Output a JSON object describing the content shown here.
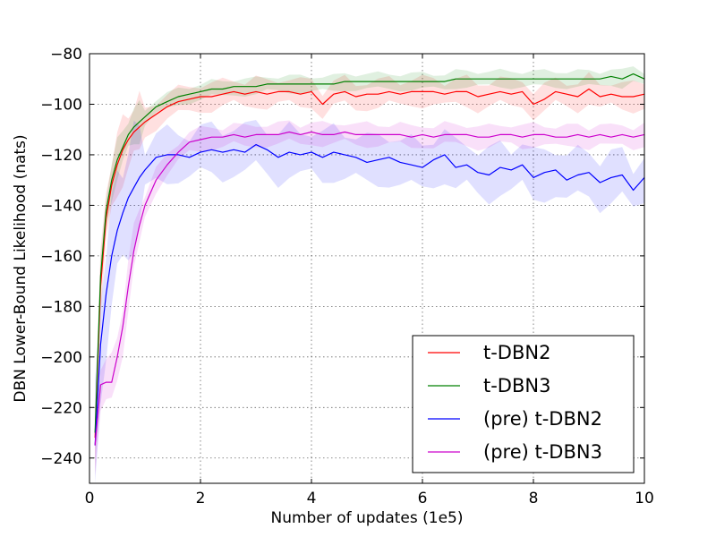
{
  "chart_data": {
    "type": "line",
    "title": "",
    "xlabel": "Number of updates (1e5)",
    "ylabel": "DBN Lower-Bound Likelihood (nats)",
    "xlim": [
      0,
      10
    ],
    "ylim": [
      -250,
      -80
    ],
    "xticks": [
      0,
      2,
      4,
      6,
      8,
      10
    ],
    "xtick_labels": [
      "0",
      "2",
      "4",
      "6",
      "8",
      "10"
    ],
    "yticks": [
      -240,
      -220,
      -200,
      -180,
      -160,
      -140,
      -120,
      -100,
      -80
    ],
    "ytick_labels": [
      "−240",
      "−220",
      "−200",
      "−180",
      "−160",
      "−140",
      "−120",
      "−100",
      "−80"
    ],
    "grid": true,
    "legend_position": "bottom-right",
    "x": [
      0.1,
      0.2,
      0.3,
      0.4,
      0.5,
      0.6,
      0.7,
      0.8,
      0.9,
      1.0,
      1.2,
      1.4,
      1.6,
      1.8,
      2.0,
      2.2,
      2.4,
      2.6,
      2.8,
      3.0,
      3.2,
      3.4,
      3.6,
      3.8,
      4.0,
      4.2,
      4.4,
      4.6,
      4.8,
      5.0,
      5.2,
      5.4,
      5.6,
      5.8,
      6.0,
      6.2,
      6.4,
      6.6,
      6.8,
      7.0,
      7.2,
      7.4,
      7.6,
      7.8,
      8.0,
      8.2,
      8.4,
      8.6,
      8.8,
      9.0,
      9.2,
      9.4,
      9.6,
      9.8,
      10.0
    ],
    "series": [
      {
        "name": "t-DBN2",
        "color": "#ff0000",
        "values": [
          -232,
          -172,
          -145,
          -132,
          -124,
          -118,
          -114,
          -111,
          -109,
          -107,
          -104,
          -101,
          -99,
          -98,
          -97,
          -97,
          -96,
          -95,
          -96,
          -95,
          -96,
          -95,
          -95,
          -96,
          -95,
          -100,
          -96,
          -95,
          -97,
          -96,
          -96,
          -95,
          -96,
          -95,
          -95,
          -95,
          -96,
          -95,
          -95,
          -97,
          -96,
          -95,
          -96,
          -95,
          -100,
          -98,
          -95,
          -96,
          -97,
          -94,
          -97,
          -96,
          -97,
          -97,
          -96
        ],
        "band": 5
      },
      {
        "name": "t-DBN3",
        "color": "#008000",
        "values": [
          -230,
          -168,
          -142,
          -130,
          -122,
          -117,
          -112,
          -109,
          -107,
          -105,
          -101,
          -99,
          -97,
          -96,
          -95,
          -94,
          -94,
          -93,
          -93,
          -93,
          -92,
          -92,
          -92,
          -92,
          -92,
          -92,
          -92,
          -91,
          -91,
          -91,
          -91,
          -91,
          -91,
          -91,
          -91,
          -91,
          -91,
          -90,
          -90,
          -90,
          -90,
          -90,
          -90,
          -90,
          -90,
          -90,
          -90,
          -90,
          -90,
          -90,
          -90,
          -89,
          -90,
          -88,
          -90
        ],
        "band": 3
      },
      {
        "name": "(pre) t-DBN2",
        "color": "#0000ff",
        "values": [
          -235,
          -195,
          -175,
          -160,
          -150,
          -143,
          -137,
          -133,
          -129,
          -126,
          -121,
          -120,
          -120,
          -121,
          -119,
          -118,
          -119,
          -118,
          -119,
          -116,
          -118,
          -121,
          -119,
          -120,
          -119,
          -121,
          -119,
          -120,
          -121,
          -123,
          -122,
          -121,
          -123,
          -124,
          -125,
          -122,
          -120,
          -125,
          -124,
          -127,
          -128,
          -125,
          -126,
          -124,
          -129,
          -127,
          -126,
          -130,
          -128,
          -127,
          -131,
          -129,
          -128,
          -134,
          -129
        ],
        "band": 9
      },
      {
        "name": "(pre) t-DBN3",
        "color": "#cc00cc",
        "values": [
          -235,
          -211,
          -210,
          -210,
          -200,
          -188,
          -172,
          -158,
          -148,
          -140,
          -130,
          -124,
          -119,
          -115,
          -114,
          -113,
          -113,
          -112,
          -113,
          -112,
          -112,
          -112,
          -111,
          -112,
          -111,
          -112,
          -112,
          -111,
          -112,
          -112,
          -112,
          -112,
          -112,
          -113,
          -112,
          -113,
          -112,
          -112,
          -112,
          -113,
          -113,
          -112,
          -112,
          -113,
          -112,
          -112,
          -113,
          -113,
          -112,
          -113,
          -112,
          -113,
          -112,
          -113,
          -112
        ],
        "band": 4
      }
    ]
  }
}
